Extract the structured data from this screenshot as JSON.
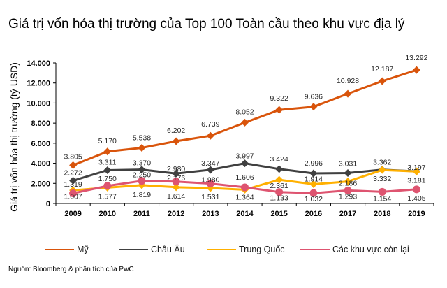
{
  "chart_data": {
    "type": "line",
    "title": "Giá trị vốn hóa thị trường của Top 100 Toàn cầu theo khu vực địa lý",
    "xlabel": "",
    "ylabel": "Giá trị vốn hóa thị trường (tỷ USD)",
    "ylim": [
      0,
      14000
    ],
    "yticks": [
      0,
      2000,
      4000,
      6000,
      8000,
      10000,
      12000,
      14000
    ],
    "ytick_labels": [
      "0",
      "2.000",
      "4.000",
      "6.000",
      "8.000",
      "10.000",
      "12.000",
      "14.000"
    ],
    "categories": [
      "2009",
      "2010",
      "2011",
      "2012",
      "2013",
      "2014",
      "2015",
      "2016",
      "2017",
      "2018",
      "2019"
    ],
    "grid": false,
    "legend_position": "bottom",
    "series": [
      {
        "name": "Mỹ",
        "color": "#D9540B",
        "marker": "diamond",
        "values": [
          3805,
          5170,
          5538,
          6202,
          6739,
          8052,
          9322,
          9636,
          10928,
          12187,
          13292
        ],
        "labels": [
          "3.805",
          "5.170",
          "5.538",
          "6.202",
          "6.739",
          "8.052",
          "9.322",
          "9.636",
          "10.928",
          "12.187",
          "13.292"
        ]
      },
      {
        "name": "Châu Âu",
        "color": "#404040",
        "marker": "diamond",
        "values": [
          2272,
          3311,
          3370,
          2980,
          3347,
          3997,
          3424,
          2996,
          3031,
          3362,
          3197
        ],
        "labels": [
          "2.272",
          "3.311",
          "3.370",
          "2.980",
          "3.347",
          "3.997",
          "3.424",
          "2.996",
          "3.031",
          "3.362",
          "3.197"
        ]
      },
      {
        "name": "Trung Quốc",
        "color": "#FFB000",
        "marker": "diamond",
        "values": [
          1319,
          1577,
          1819,
          1614,
          1531,
          1364,
          2361,
          1914,
          2186,
          3332,
          3181
        ],
        "labels": [
          "1.319",
          "1.577",
          "1.819",
          "1.614",
          "1.531",
          "1.364",
          "2.361",
          "1.914",
          "2.186",
          "3.332",
          "3.181"
        ]
      },
      {
        "name": "Các khu vực còn lại",
        "color": "#DE5470",
        "marker": "circle",
        "values": [
          1007,
          1750,
          2250,
          2176,
          1980,
          1606,
          1133,
          1032,
          1293,
          1154,
          1405
        ],
        "labels": [
          "1.007",
          "1.750",
          "2.250",
          "2.176",
          "1.980",
          "1.606",
          "1.133",
          "1.032",
          "1.293",
          "1.154",
          "1.405"
        ]
      }
    ],
    "source": "Nguồn: Bloomberg & phân tích của PwC"
  }
}
